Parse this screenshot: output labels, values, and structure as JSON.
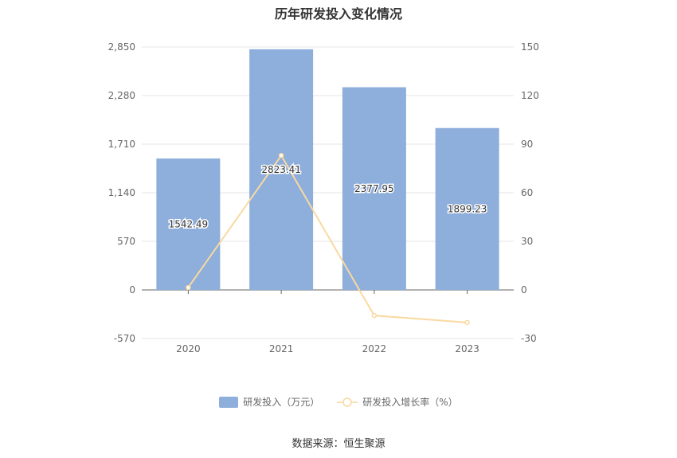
{
  "chart_data": {
    "type": "bar",
    "title": "历年研发投入变化情况",
    "categories": [
      "2020",
      "2021",
      "2022",
      "2023"
    ],
    "series": [
      {
        "name": "研发投入（万元）",
        "type": "bar",
        "axis": "left",
        "values": [
          1542.49,
          2823.41,
          2377.95,
          1899.23
        ],
        "data_labels": [
          "1542.49",
          "2823.41",
          "2377.95",
          "1899.23"
        ],
        "color": "#8eaedb"
      },
      {
        "name": "研发投入增长率（%）",
        "type": "line",
        "axis": "right",
        "values": [
          1.5,
          83.0,
          -15.8,
          -20.1
        ],
        "color": "#f9d9a0"
      }
    ],
    "y_left": {
      "ticks": [
        "2,850",
        "2,280",
        "1,710",
        "1,140",
        "570",
        "0",
        "-570"
      ],
      "ylim": [
        -570,
        2850
      ]
    },
    "y_right": {
      "ticks": [
        "150",
        "120",
        "90",
        "60",
        "30",
        "0",
        "-30"
      ],
      "ylim": [
        -30,
        150
      ]
    },
    "grid": true,
    "legend_position": "bottom"
  },
  "source": "数据来源：恒生聚源"
}
